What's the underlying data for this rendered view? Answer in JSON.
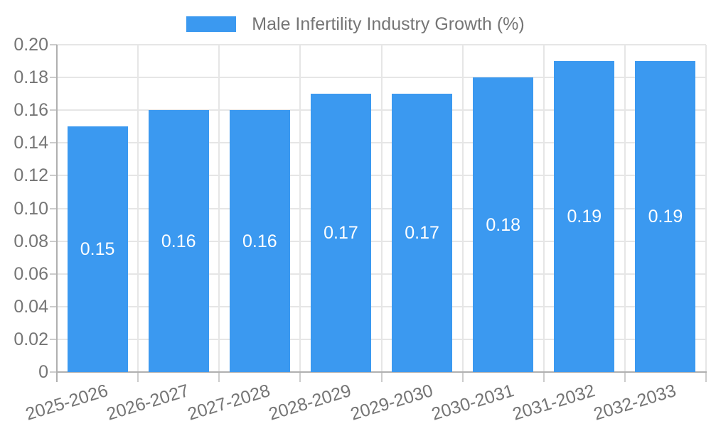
{
  "colors": {
    "bar": "#3b99f0",
    "text": "#757575",
    "bar_label": "#ffffff",
    "grid": "#e6e6e6",
    "tick": "#cccccc",
    "axis_line": "#b0b0b0",
    "background": "#ffffff"
  },
  "chart_data": {
    "type": "bar",
    "title": "",
    "series_name": "Male Infertility Industry Growth (%)",
    "categories": [
      "2025-2026",
      "2026-2027",
      "2027-2028",
      "2028-2029",
      "2029-2030",
      "2030-2031",
      "2031-2032",
      "2032-2033"
    ],
    "values": [
      0.15,
      0.16,
      0.16,
      0.17,
      0.17,
      0.18,
      0.19,
      0.19
    ],
    "value_labels": [
      "0.15",
      "0.16",
      "0.16",
      "0.17",
      "0.17",
      "0.18",
      "0.19",
      "0.19"
    ],
    "xlabel": "",
    "ylabel": "",
    "ylim": [
      0,
      0.2
    ],
    "ytick_step": 0.02,
    "ytick_labels": [
      "0",
      "0.02",
      "0.04",
      "0.06",
      "0.08",
      "0.10",
      "0.12",
      "0.14",
      "0.16",
      "0.18",
      "0.20"
    ],
    "grid": true,
    "legend_position": "top"
  }
}
